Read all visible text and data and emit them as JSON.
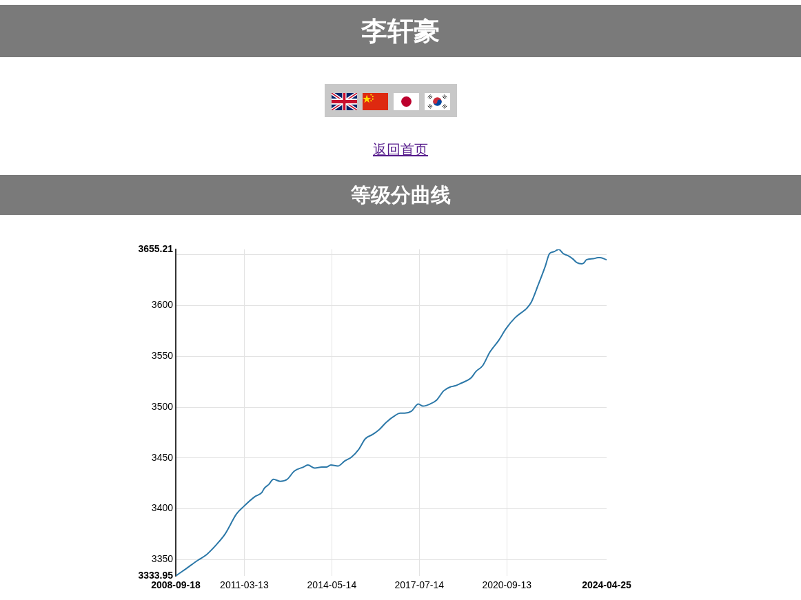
{
  "chart_data": {
    "type": "line",
    "title": "李轩豪",
    "subtitle": "等级分曲线",
    "annotations": [
      "返回首页"
    ],
    "x": [
      "2008-09-18",
      "2009-02",
      "2009-07",
      "2009-11",
      "2010-03",
      "2010-07",
      "2010-12",
      "2011-03",
      "2011-08",
      "2011-11",
      "2011-12",
      "2012-02",
      "2012-04",
      "2012-07",
      "2012-10",
      "2013-01",
      "2013-05",
      "2013-07",
      "2013-10",
      "2014-01",
      "2014-03",
      "2014-05",
      "2014-08",
      "2014-11",
      "2015-02",
      "2015-05",
      "2015-08",
      "2015-11",
      "2016-02",
      "2016-05",
      "2016-09",
      "2016-11",
      "2017-01",
      "2017-04",
      "2017-07",
      "2017-09",
      "2017-12",
      "2018-03",
      "2018-06",
      "2018-09",
      "2018-11",
      "2019-01",
      "2019-04",
      "2019-06",
      "2019-08",
      "2019-11",
      "2020-02",
      "2020-06",
      "2020-09",
      "2021-01",
      "2021-05",
      "2021-06",
      "2021-08",
      "2021-11",
      "2022-02",
      "2022-04",
      "2022-06",
      "2022-08",
      "2022-10",
      "2022-12",
      "2023-02",
      "2023-04",
      "2023-06",
      "2023-07",
      "2023-08",
      "2023-11",
      "2024-01",
      "2024-02",
      "2024-04-25"
    ],
    "values": [
      3333.95,
      3341,
      3349,
      3355,
      3364,
      3375,
      3395,
      3402,
      3412,
      3416,
      3420,
      3424,
      3429,
      3427,
      3429,
      3437,
      3441,
      3443,
      3440,
      3441,
      3441,
      3443,
      3442,
      3447,
      3451,
      3458,
      3469,
      3473,
      3478,
      3485,
      3492,
      3494,
      3494,
      3496,
      3503,
      3501,
      3503,
      3507,
      3516,
      3520,
      3521,
      3523,
      3526,
      3529,
      3535,
      3541,
      3554,
      3566,
      3577,
      3588,
      3595,
      3597,
      3603,
      3620,
      3638,
      3651,
      3653,
      3655.21,
      3651,
      3649,
      3646,
      3642,
      3641,
      3642,
      3645,
      3646,
      3647,
      3647,
      3645
    ],
    "color": "#2c78a8",
    "xlim": [
      "2008-09-18",
      "2024-04-25"
    ],
    "xticks": [
      "2008-09-18",
      "2011-03-13",
      "2014-05-14",
      "2017-07-14",
      "2020-09-13",
      "2024-04-25"
    ],
    "ylim": [
      3333.95,
      3655.21
    ],
    "yticks": [
      3333.95,
      3350,
      3400,
      3450,
      3500,
      3550,
      3600,
      {
        "value": 3650,
        "label": null
      },
      3655.21
    ],
    "grid": true,
    "marker": "none",
    "line_style": "solid"
  }
}
